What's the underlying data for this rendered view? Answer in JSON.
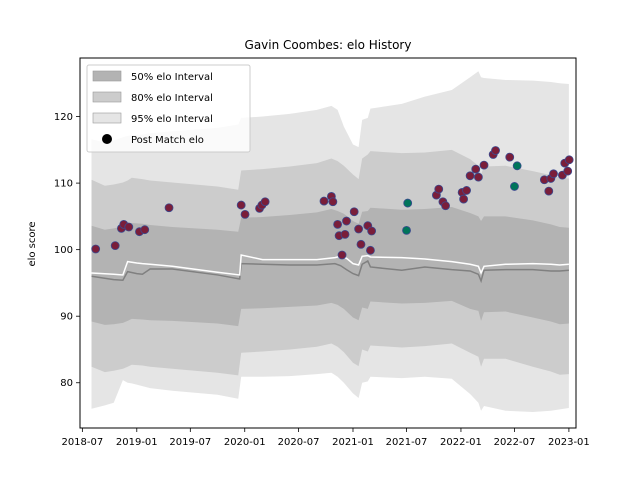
{
  "chart_data": {
    "type": "scatter",
    "title": "Gavin Coombes: elo History",
    "xlabel": "",
    "ylabel": "elo score",
    "xlim": [
      "2018-06-23",
      "2023-01-25"
    ],
    "ylim": [
      73.2,
      128.8
    ],
    "x_ticks": [
      "2018-07",
      "2019-01",
      "2019-07",
      "2020-01",
      "2020-07",
      "2021-01",
      "2021-07",
      "2022-01",
      "2022-07",
      "2023-01"
    ],
    "y_ticks": [
      80,
      90,
      100,
      110,
      120
    ],
    "legend": {
      "position": "top-left",
      "entries": [
        "50% elo Interval",
        "80% elo Interval",
        "95% elo Interval",
        "Post Match elo"
      ]
    },
    "colors": {
      "band_50": "#b3b3b3",
      "band_80": "#cccccc",
      "band_95": "#e5e5e5",
      "mean_line": "#808080",
      "median_line": "#ffffff",
      "point_loss": "#7a1e3a",
      "point_win": "#00745a",
      "point_edge": "#3b4a8f"
    },
    "series": [
      {
        "name": "50% elo Interval",
        "x": [
          "2018-08-01",
          "2018-09-15",
          "2018-10-15",
          "2018-11-15",
          "2018-12-01",
          "2018-12-15",
          "2019-01-20",
          "2019-02-15",
          "2019-05-01",
          "2019-10-01",
          "2019-12-10",
          "2019-12-20",
          "2020-03-01",
          "2020-06-01",
          "2020-09-01",
          "2020-10-20",
          "2020-11-10",
          "2020-12-01",
          "2021-01-01",
          "2021-01-20",
          "2021-02-01",
          "2021-02-20",
          "2021-03-01",
          "2021-06-15",
          "2021-09-01",
          "2021-12-01",
          "2022-02-01",
          "2022-03-01",
          "2022-03-10",
          "2022-03-20",
          "2022-06-01",
          "2022-09-01",
          "2022-11-01",
          "2022-12-01",
          "2023-01-01"
        ],
        "lower": [
          89.2,
          88.7,
          88.8,
          89.0,
          89.3,
          89.6,
          89.5,
          89.4,
          89.3,
          88.9,
          88.5,
          91.1,
          91.2,
          91.4,
          91.6,
          92.0,
          91.7,
          91.1,
          89.8,
          89.4,
          91.3,
          91.1,
          92.2,
          91.9,
          92.0,
          92.3,
          91.1,
          90.8,
          89.3,
          90.6,
          90.7,
          89.8,
          89.2,
          88.8,
          88.9
        ],
        "upper": [
          103.6,
          103.0,
          103.2,
          103.5,
          103.8,
          104.0,
          103.9,
          103.7,
          103.4,
          103.0,
          102.7,
          104.8,
          104.9,
          105.2,
          105.6,
          106.1,
          105.8,
          105.4,
          104.3,
          103.9,
          105.7,
          105.8,
          106.3,
          106.0,
          106.1,
          106.4,
          105.5,
          105.0,
          104.3,
          105.0,
          105.0,
          104.4,
          103.8,
          103.4,
          103.3
        ]
      },
      {
        "name": "80% elo Interval",
        "x": [
          "2018-08-01",
          "2018-09-15",
          "2018-10-15",
          "2018-11-15",
          "2018-12-01",
          "2018-12-15",
          "2019-01-20",
          "2019-02-15",
          "2019-05-01",
          "2019-10-01",
          "2019-12-10",
          "2019-12-20",
          "2020-03-01",
          "2020-06-01",
          "2020-09-01",
          "2020-10-20",
          "2020-11-10",
          "2020-12-01",
          "2021-01-01",
          "2021-01-20",
          "2021-02-01",
          "2021-02-20",
          "2021-03-01",
          "2021-06-15",
          "2021-09-01",
          "2021-12-01",
          "2022-02-01",
          "2022-03-01",
          "2022-03-10",
          "2022-03-20",
          "2022-06-01",
          "2022-09-01",
          "2022-11-01",
          "2022-12-01",
          "2023-01-01"
        ],
        "lower": [
          82.4,
          81.6,
          81.8,
          82.1,
          82.4,
          82.7,
          82.6,
          82.4,
          82.1,
          81.5,
          81.1,
          84.5,
          84.7,
          85.0,
          85.4,
          85.9,
          85.4,
          84.6,
          83.0,
          82.5,
          85.0,
          84.7,
          85.6,
          85.3,
          85.5,
          85.9,
          84.5,
          83.9,
          82.4,
          83.6,
          83.6,
          82.4,
          81.7,
          81.2,
          81.3
        ],
        "upper": [
          110.5,
          109.6,
          109.8,
          110.1,
          110.4,
          110.8,
          110.6,
          110.4,
          110.1,
          109.5,
          109.0,
          111.9,
          112.1,
          112.5,
          113.0,
          113.7,
          113.3,
          112.6,
          111.3,
          110.6,
          113.7,
          114.3,
          114.8,
          114.5,
          114.6,
          115.0,
          113.6,
          112.6,
          111.3,
          112.5,
          112.6,
          111.8,
          111.2,
          110.8,
          110.7
        ]
      },
      {
        "name": "95% elo Interval",
        "x": [
          "2018-08-01",
          "2018-09-15",
          "2018-10-15",
          "2018-11-15",
          "2018-12-01",
          "2018-12-15",
          "2019-01-20",
          "2019-02-15",
          "2019-05-01",
          "2019-10-01",
          "2019-12-10",
          "2019-12-20",
          "2020-03-01",
          "2020-06-01",
          "2020-09-01",
          "2020-10-20",
          "2020-11-10",
          "2020-12-01",
          "2021-01-01",
          "2021-01-20",
          "2021-02-01",
          "2021-02-20",
          "2021-03-01",
          "2021-06-15",
          "2021-09-01",
          "2021-12-01",
          "2022-02-01",
          "2022-03-01",
          "2022-03-10",
          "2022-03-20",
          "2022-06-01",
          "2022-09-01",
          "2022-11-01",
          "2022-12-01",
          "2023-01-01"
        ],
        "lower": [
          76.1,
          76.6,
          77.0,
          80.4,
          80.0,
          79.9,
          79.5,
          79.2,
          78.8,
          78.2,
          77.6,
          80.9,
          80.9,
          81.0,
          81.3,
          81.5,
          80.9,
          80.0,
          78.4,
          77.7,
          80.0,
          80.2,
          80.9,
          80.7,
          80.9,
          80.6,
          78.3,
          77.0,
          75.8,
          76.5,
          75.8,
          75.6,
          75.8,
          76.0,
          76.2
        ],
        "upper": [
          116.6,
          116.1,
          116.4,
          116.9,
          117.1,
          117.2,
          117.3,
          117.5,
          117.8,
          118.3,
          118.8,
          119.8,
          120.0,
          120.4,
          121.0,
          121.6,
          121.0,
          118.5,
          115.8,
          115.4,
          119.5,
          119.8,
          121.2,
          121.9,
          123.0,
          124.0,
          125.9,
          126.8,
          125.9,
          125.8,
          125.5,
          125.4,
          125.2,
          125.0,
          124.9
        ]
      },
      {
        "name": "mean",
        "x": [
          "2018-08-01",
          "2018-10-15",
          "2018-11-15",
          "2018-12-01",
          "2019-01-01",
          "2019-01-20",
          "2019-02-15",
          "2019-05-01",
          "2019-10-01",
          "2019-12-15",
          "2019-12-20",
          "2020-03-01",
          "2020-06-01",
          "2020-09-01",
          "2020-11-01",
          "2020-11-20",
          "2020-12-10",
          "2021-01-01",
          "2021-01-20",
          "2021-02-01",
          "2021-02-20",
          "2021-03-01",
          "2021-06-15",
          "2021-09-01",
          "2021-12-01",
          "2022-02-01",
          "2022-03-01",
          "2022-03-10",
          "2022-03-20",
          "2022-06-01",
          "2022-09-01",
          "2022-11-01",
          "2022-12-01",
          "2023-01-01"
        ],
        "values": [
          96.0,
          95.5,
          95.4,
          96.7,
          96.4,
          96.3,
          97.1,
          97.1,
          96.2,
          95.6,
          97.9,
          97.8,
          97.7,
          97.7,
          97.9,
          97.6,
          97.0,
          96.4,
          96.1,
          97.8,
          98.3,
          97.4,
          96.9,
          97.4,
          97.0,
          96.8,
          96.3,
          95.3,
          96.9,
          97.0,
          97.0,
          96.8,
          96.8,
          96.9
        ]
      },
      {
        "name": "median",
        "x": [
          "2018-08-01",
          "2018-10-15",
          "2018-11-15",
          "2018-12-01",
          "2019-01-01",
          "2019-01-20",
          "2019-02-15",
          "2019-05-01",
          "2019-10-01",
          "2019-12-15",
          "2019-12-20",
          "2020-03-01",
          "2020-06-01",
          "2020-09-01",
          "2020-11-01",
          "2020-11-20",
          "2020-12-10",
          "2021-01-01",
          "2021-01-20",
          "2021-02-01",
          "2021-02-20",
          "2021-03-01",
          "2021-06-15",
          "2021-09-01",
          "2021-12-01",
          "2022-02-01",
          "2022-03-01",
          "2022-03-10",
          "2022-03-20",
          "2022-06-01",
          "2022-09-01",
          "2022-11-01",
          "2022-12-01",
          "2023-01-01"
        ],
        "values": [
          96.5,
          96.3,
          96.2,
          98.2,
          98.0,
          97.9,
          97.8,
          97.5,
          96.6,
          96.2,
          99.2,
          98.5,
          98.5,
          98.5,
          98.8,
          99.0,
          98.7,
          97.9,
          97.7,
          99.0,
          99.1,
          98.9,
          98.8,
          98.6,
          98.2,
          97.8,
          97.5,
          96.5,
          97.5,
          97.8,
          97.9,
          97.8,
          97.7,
          97.8
        ]
      },
      {
        "name": "Post Match elo",
        "points": [
          {
            "x": "2018-08-15",
            "y": 100.1,
            "result": "loss"
          },
          {
            "x": "2018-10-20",
            "y": 100.6,
            "result": "loss"
          },
          {
            "x": "2018-11-10",
            "y": 103.2,
            "result": "loss"
          },
          {
            "x": "2018-11-18",
            "y": 103.8,
            "result": "loss"
          },
          {
            "x": "2018-12-05",
            "y": 103.4,
            "result": "loss"
          },
          {
            "x": "2019-01-10",
            "y": 102.7,
            "result": "loss"
          },
          {
            "x": "2019-01-28",
            "y": 103.0,
            "result": "loss"
          },
          {
            "x": "2019-04-20",
            "y": 106.3,
            "result": "loss"
          },
          {
            "x": "2019-12-20",
            "y": 106.7,
            "result": "loss"
          },
          {
            "x": "2020-01-02",
            "y": 105.3,
            "result": "loss"
          },
          {
            "x": "2020-02-20",
            "y": 106.2,
            "result": "loss"
          },
          {
            "x": "2020-02-28",
            "y": 106.7,
            "result": "loss"
          },
          {
            "x": "2020-03-10",
            "y": 107.2,
            "result": "loss"
          },
          {
            "x": "2020-09-25",
            "y": 107.3,
            "result": "loss"
          },
          {
            "x": "2020-10-20",
            "y": 108.0,
            "result": "loss"
          },
          {
            "x": "2020-10-25",
            "y": 107.2,
            "result": "loss"
          },
          {
            "x": "2020-11-10",
            "y": 103.8,
            "result": "loss"
          },
          {
            "x": "2020-11-15",
            "y": 102.1,
            "result": "loss"
          },
          {
            "x": "2020-11-25",
            "y": 99.2,
            "result": "loss"
          },
          {
            "x": "2020-12-05",
            "y": 102.3,
            "result": "loss"
          },
          {
            "x": "2020-12-10",
            "y": 104.3,
            "result": "loss"
          },
          {
            "x": "2021-01-05",
            "y": 105.7,
            "result": "loss"
          },
          {
            "x": "2021-01-20",
            "y": 103.1,
            "result": "loss"
          },
          {
            "x": "2021-01-28",
            "y": 100.8,
            "result": "loss"
          },
          {
            "x": "2021-02-20",
            "y": 103.6,
            "result": "loss"
          },
          {
            "x": "2021-03-01",
            "y": 99.9,
            "result": "loss"
          },
          {
            "x": "2021-03-05",
            "y": 102.8,
            "result": "loss"
          },
          {
            "x": "2021-07-01",
            "y": 102.9,
            "result": "win"
          },
          {
            "x": "2021-07-05",
            "y": 107.0,
            "result": "win"
          },
          {
            "x": "2021-10-10",
            "y": 108.2,
            "result": "loss"
          },
          {
            "x": "2021-10-18",
            "y": 109.1,
            "result": "loss"
          },
          {
            "x": "2021-11-01",
            "y": 107.2,
            "result": "loss"
          },
          {
            "x": "2021-11-10",
            "y": 106.6,
            "result": "loss"
          },
          {
            "x": "2022-01-05",
            "y": 108.6,
            "result": "loss"
          },
          {
            "x": "2022-01-10",
            "y": 107.6,
            "result": "loss"
          },
          {
            "x": "2022-01-20",
            "y": 108.9,
            "result": "loss"
          },
          {
            "x": "2022-02-01",
            "y": 111.1,
            "result": "loss"
          },
          {
            "x": "2022-02-20",
            "y": 112.1,
            "result": "loss"
          },
          {
            "x": "2022-03-01",
            "y": 110.9,
            "result": "loss"
          },
          {
            "x": "2022-03-20",
            "y": 112.7,
            "result": "loss"
          },
          {
            "x": "2022-04-20",
            "y": 114.3,
            "result": "loss"
          },
          {
            "x": "2022-04-28",
            "y": 114.9,
            "result": "loss"
          },
          {
            "x": "2022-06-15",
            "y": 113.9,
            "result": "loss"
          },
          {
            "x": "2022-07-01",
            "y": 109.5,
            "result": "win"
          },
          {
            "x": "2022-07-10",
            "y": 112.6,
            "result": "win"
          },
          {
            "x": "2022-10-10",
            "y": 110.5,
            "result": "loss"
          },
          {
            "x": "2022-10-25",
            "y": 108.8,
            "result": "loss"
          },
          {
            "x": "2022-11-01",
            "y": 110.7,
            "result": "loss"
          },
          {
            "x": "2022-11-10",
            "y": 111.4,
            "result": "loss"
          },
          {
            "x": "2022-12-10",
            "y": 111.2,
            "result": "loss"
          },
          {
            "x": "2022-12-18",
            "y": 113.0,
            "result": "loss"
          },
          {
            "x": "2022-12-28",
            "y": 111.8,
            "result": "loss"
          },
          {
            "x": "2023-01-02",
            "y": 113.5,
            "result": "loss"
          }
        ]
      }
    ]
  }
}
